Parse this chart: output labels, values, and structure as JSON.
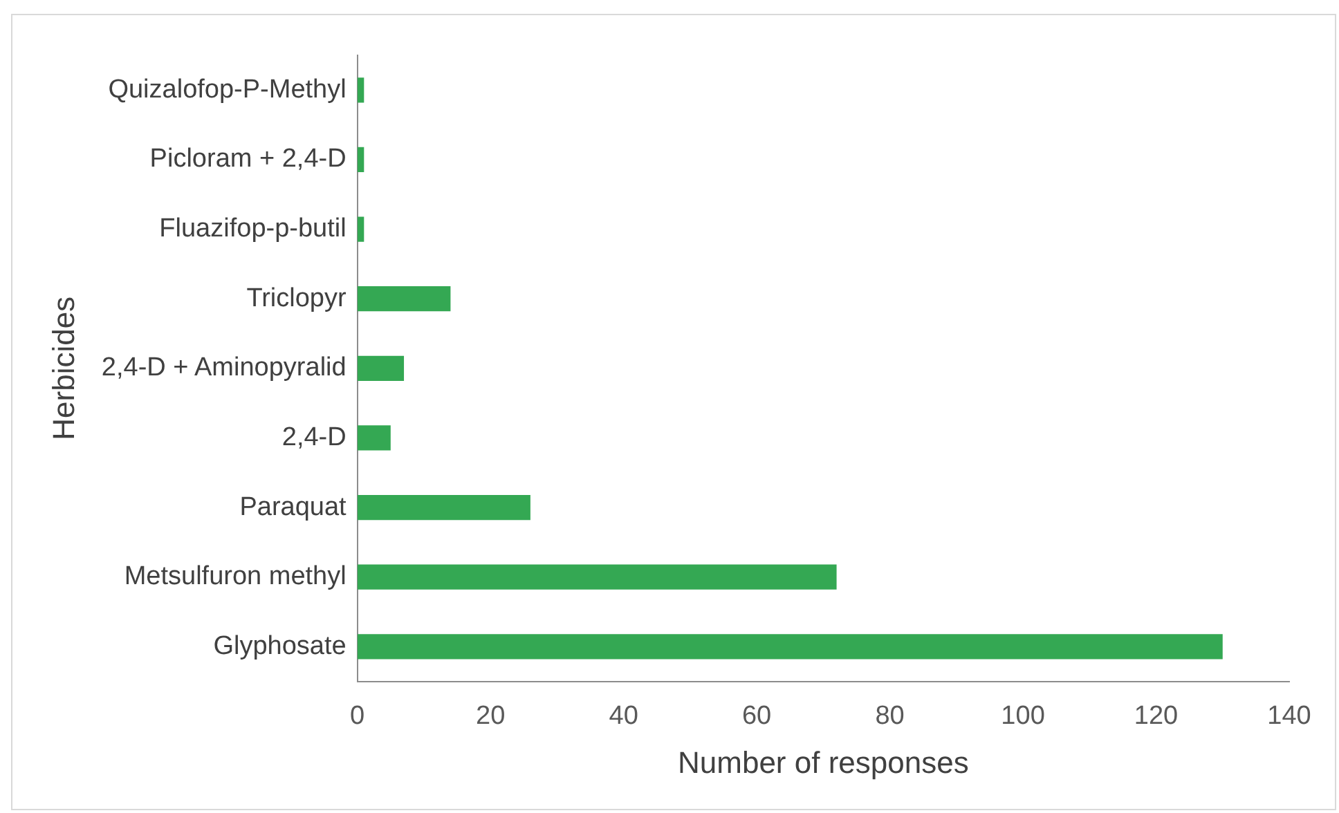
{
  "chart_data": {
    "type": "bar",
    "orientation": "horizontal",
    "xlabel": "Number of responses",
    "ylabel": "Herbicides",
    "categories": [
      "Quizalofop-P-Methyl",
      "Picloram + 2,4-D",
      "Fluazifop-p-butil",
      "Triclopyr",
      "2,4-D + Aminopyralid",
      "2,4-D",
      "Paraquat",
      "Metsulfuron methyl",
      "Glyphosate"
    ],
    "values": [
      1,
      1,
      1,
      14,
      7,
      5,
      26,
      72,
      130
    ],
    "color": "#34a853",
    "xlim": [
      0,
      140
    ],
    "xticks": [
      0,
      20,
      40,
      60,
      80,
      100,
      120,
      140
    ],
    "grid": false,
    "legend": false
  }
}
